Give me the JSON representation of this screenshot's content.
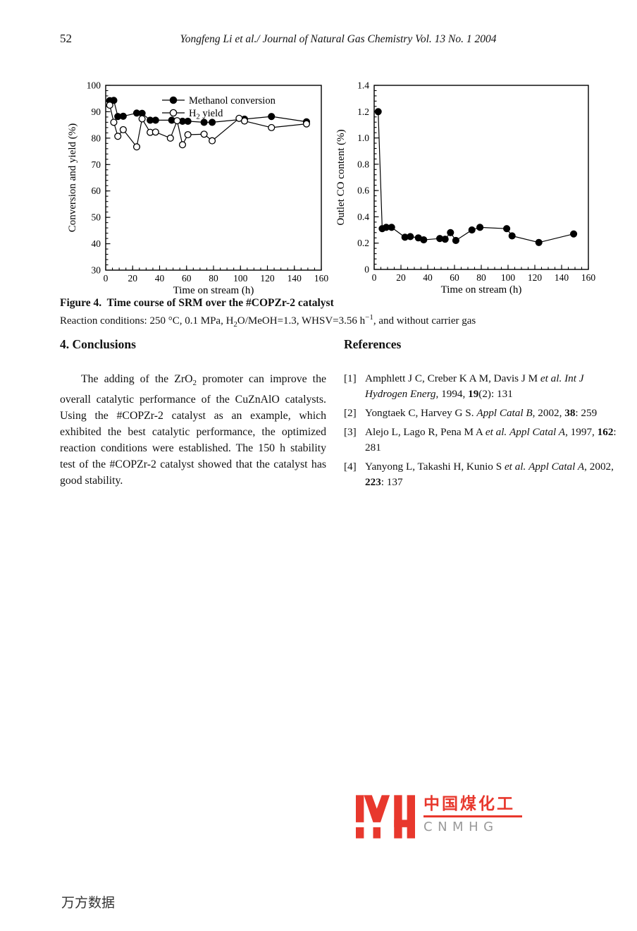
{
  "page": {
    "number": "52",
    "running_head": "Yongfeng Li et al./ Journal of Natural Gas Chemistry Vol. 13 No. 1  2004",
    "watermark": "万方数据"
  },
  "figure": {
    "caption_title": "Figure 4.  Time course of SRM over the #COPZr-2 catalyst",
    "caption_conditions": [
      {
        "t": "Reaction conditions: 250 °C, 0.1 MPa, H"
      },
      {
        "t": "2",
        "sub": 1
      },
      {
        "t": "O/MeOH=1.3, WHSV=3.56 h"
      },
      {
        "t": "−1",
        "sup": 1
      },
      {
        "t": ", and without carrier gas"
      }
    ]
  },
  "chart_data": [
    {
      "type": "line",
      "title": "",
      "xlabel": "Time on stream (h)",
      "ylabel": "Conversion and yield (%)",
      "xlim": [
        0,
        160
      ],
      "ylim": [
        30,
        100
      ],
      "xticks": [
        "0",
        "20",
        "40",
        "60",
        "80",
        "100",
        "120",
        "140",
        "160"
      ],
      "yticks": [
        "30",
        "40",
        "50",
        "60",
        "70",
        "80",
        "90",
        "100"
      ],
      "xminor": 5,
      "yminor": 2,
      "grid": false,
      "legend_position": "top-center-inside",
      "legend": [
        {
          "marker": "filled",
          "segments": [
            {
              "t": "Methanol conversion"
            }
          ]
        },
        {
          "marker": "open",
          "segments": [
            {
              "t": "H"
            },
            {
              "t": "2",
              "sub": 1
            },
            {
              "t": " yield"
            }
          ]
        }
      ],
      "series": [
        {
          "name": "Methanol conversion",
          "key": "methanol-conversion",
          "marker": "filled",
          "x": [
            3,
            6,
            9,
            13,
            23,
            27,
            33,
            37,
            49,
            57,
            61,
            73,
            79,
            103,
            123,
            149
          ],
          "y": [
            94.2,
            94.3,
            88.2,
            88.3,
            89.5,
            89.4,
            86.8,
            86.8,
            86.8,
            86.4,
            86.4,
            86.0,
            86.0,
            87.2,
            88.2,
            86.2
          ]
        },
        {
          "name": "H2 yield",
          "key": "h2-yield",
          "marker": "open",
          "x": [
            3,
            6,
            9,
            13,
            23,
            27,
            33,
            37,
            48,
            53,
            57,
            61,
            73,
            79,
            99,
            103,
            123,
            149
          ],
          "y": [
            92.5,
            86.0,
            80.7,
            83.2,
            76.7,
            87.3,
            82.2,
            82.3,
            80.0,
            86.6,
            77.5,
            81.3,
            81.5,
            79.0,
            87.5,
            86.5,
            84.0,
            85.4
          ]
        }
      ]
    },
    {
      "type": "line",
      "title": "",
      "xlabel": "Time on stream (h)",
      "ylabel": "Outlet CO content (%)",
      "xlim": [
        0,
        160
      ],
      "ylim": [
        0,
        1.4
      ],
      "xticks": [
        "0",
        "20",
        "40",
        "60",
        "80",
        "100",
        "120",
        "140",
        "160"
      ],
      "yticks": [
        "0",
        "0.2",
        "0.4",
        "0.6",
        "0.8",
        "1.0",
        "1.2",
        "1.4"
      ],
      "xminor": 5,
      "yminor": 0.04,
      "grid": false,
      "series": [
        {
          "name": "Outlet CO content",
          "key": "outlet-co-content",
          "marker": "filled",
          "x": [
            3,
            6,
            9,
            13,
            23,
            27,
            33,
            37,
            49,
            53,
            57,
            61,
            73,
            79,
            99,
            103,
            123,
            149
          ],
          "y": [
            1.2,
            0.31,
            0.32,
            0.32,
            0.245,
            0.25,
            0.24,
            0.225,
            0.235,
            0.23,
            0.28,
            0.22,
            0.3,
            0.32,
            0.31,
            0.255,
            0.205,
            0.27
          ]
        }
      ]
    }
  ],
  "conclusions": {
    "heading": "4. Conclusions",
    "paragraph": [
      {
        "t": "The adding of the ZrO"
      },
      {
        "t": "2",
        "sub": 1
      },
      {
        "t": " promoter can improve the overall catalytic performance of the CuZnAlO catalysts. Using the #COPZr-2 catalyst as an example, which exhibited the best catalytic performance, the optimized reaction conditions were established. The 150 h stability test of the #COPZr-2 catalyst showed that the catalyst has good stability."
      }
    ]
  },
  "references": {
    "heading": "References",
    "items": [
      {
        "label": "[1]",
        "segments": [
          {
            "t": "Amphlett J C, Creber K A M, Davis J M "
          },
          {
            "t": "et al.",
            "i": 1
          },
          {
            "t": " "
          },
          {
            "t": "Int J Hydrogen Energ",
            "i": 1
          },
          {
            "t": ", 1994, "
          },
          {
            "t": "19",
            "b": 1
          },
          {
            "t": "(2): 131"
          }
        ]
      },
      {
        "label": "[2]",
        "segments": [
          {
            "t": "Yongtaek C, Harvey G S. "
          },
          {
            "t": "Appl Catal B",
            "i": 1
          },
          {
            "t": ", 2002, "
          },
          {
            "t": "38",
            "b": 1
          },
          {
            "t": ": 259"
          }
        ]
      },
      {
        "label": "[3]",
        "segments": [
          {
            "t": "Alejo L, Lago R, Pena M A "
          },
          {
            "t": "et al.",
            "i": 1
          },
          {
            "t": " "
          },
          {
            "t": "Appl Catal A",
            "i": 1
          },
          {
            "t": ", 1997, "
          },
          {
            "t": "162",
            "b": 1
          },
          {
            "t": ": 281"
          }
        ]
      },
      {
        "label": "[4]",
        "segments": [
          {
            "t": "Yanyong L, Takashi H, Kunio S "
          },
          {
            "t": "et al.",
            "i": 1
          },
          {
            "t": " "
          },
          {
            "t": "Appl Catal A",
            "i": 1
          },
          {
            "t": ", 2002, "
          },
          {
            "t": "223",
            "b": 1
          },
          {
            "t": ": 137"
          }
        ]
      }
    ]
  },
  "logo": {
    "cn": "中国煤化工",
    "en": "CNMHG",
    "red": "#e8382d",
    "gray": "#9a9a9a"
  },
  "ink_color": "#000000"
}
